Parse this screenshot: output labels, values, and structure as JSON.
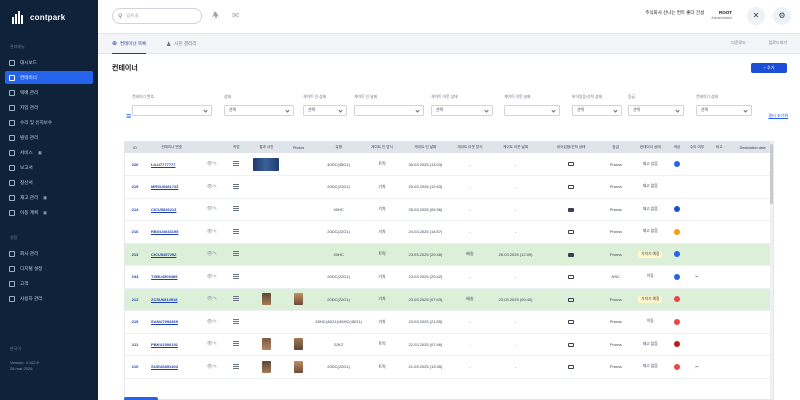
{
  "app": {
    "name": "contpark"
  },
  "sidebar": {
    "section_main": "관리메뉴",
    "items": [
      {
        "label": "대시보드",
        "icon": "dashboard-icon"
      },
      {
        "label": "컨테이너",
        "icon": "container-icon",
        "active": true
      },
      {
        "label": "택배 관리",
        "icon": "box-icon"
      },
      {
        "label": "지입 관리",
        "icon": "truck-icon"
      },
      {
        "label": "수리 및 유지보수",
        "icon": "wrench-icon"
      },
      {
        "label": "빌링 관리",
        "icon": "billing-icon"
      },
      {
        "label": "서비스",
        "icon": "service-icon",
        "badge": "8"
      },
      {
        "label": "보고서",
        "icon": "report-icon"
      },
      {
        "label": "정산서",
        "icon": "invoice-icon"
      },
      {
        "label": "재고 관리",
        "icon": "stock-icon",
        "badge": "8"
      },
      {
        "label": "이동 계획",
        "icon": "plan-icon",
        "badge": "6"
      }
    ],
    "section_settings": "설정",
    "settings_items": [
      {
        "label": "회사 관리",
        "icon": "company-icon"
      },
      {
        "label": "디지털 설정",
        "icon": "settings-icon"
      },
      {
        "label": "고객",
        "icon": "customer-icon"
      },
      {
        "label": "사용자 관리",
        "icon": "users-icon"
      }
    ],
    "language": "한국어",
    "version": "Version: 4.102.9",
    "date": "28 mar 2025"
  },
  "topbar": {
    "search_placeholder": "검색 중...",
    "user_line": "주식회사 신나는 컨트 좋다 건설",
    "user_name": "ROOT",
    "user_role": "Administrator"
  },
  "tabs": [
    {
      "label": "컨테이너 목록",
      "active": true
    },
    {
      "label": "사진 갤러리"
    }
  ],
  "tab_actions": [
    "다운로드",
    "업로드하기"
  ],
  "page": {
    "title": "컨테이너",
    "add_label": "+ 추가"
  },
  "filters": [
    {
      "label": "컨테이너 번호",
      "value": ""
    },
    {
      "label": "상태",
      "value": "선택"
    },
    {
      "label": "게이트 인 상태",
      "value": "선택"
    },
    {
      "label": "게이트 인 날짜",
      "value": ""
    },
    {
      "label": "게이트 아웃 상태",
      "value": "선택"
    },
    {
      "label": "게이트 아웃 날짜",
      "value": ""
    },
    {
      "label": "비어있음/선적 상태",
      "value": "선택"
    },
    {
      "label": "등급",
      "value": "선택"
    },
    {
      "label": "컨테이너 상태",
      "value": "선택"
    }
  ],
  "reset_label": "필터 초기화",
  "table": {
    "headers": [
      "ID",
      "컨테이너 번호",
      "",
      "작업",
      "결과 사진",
      "Photos",
      "유형",
      "게이트 인 방식",
      "게이트 인 날짜",
      "게이트 아웃 방식",
      "게이트 아웃 날짜",
      "비어있음/선적 상태",
      "등급",
      "컨테이너 상태",
      "색상",
      "수리 여부",
      "비고",
      "Destination date"
    ],
    "rows": [
      {
        "id": "220",
        "number": "LILU7777777",
        "photo": "wide",
        "type": "40DC(45G1)",
        "in_method": "트럭",
        "in_date": "30.03.2025 (13:03)",
        "out_method": "-",
        "out_date": "-",
        "device": "empty",
        "grade": "Proma",
        "status": "재고 있음",
        "color": "#2563eb",
        "repair": "",
        "hl": false
      },
      {
        "id": "219",
        "number": "MRSU5481743",
        "photo": "",
        "type": "20DC(22G1)",
        "in_method": "기차",
        "in_date": "25.03.2025 (12:53)",
        "out_method": "-",
        "out_date": "-",
        "device": "empty",
        "grade": "Proma",
        "status": "재고 없음",
        "color": "",
        "repair": "",
        "hl": false
      },
      {
        "id": "214",
        "number": "CICU5836213",
        "photo": "",
        "type": "40HC",
        "in_method": "기차",
        "in_date": "25.03.2025 (09:36)",
        "out_method": "-",
        "out_date": "-",
        "device": "filled",
        "grade": "Proma",
        "status": "재고 없음",
        "color": "#1d4ed8",
        "repair": "",
        "hl": false
      },
      {
        "id": "216",
        "number": "RBGU4043195",
        "photo": "",
        "type": "20DC(22G1)",
        "in_method": "기차",
        "in_date": "24.03.2025 (14:57)",
        "out_method": "-",
        "out_date": "-",
        "device": "empty",
        "grade": "Proma",
        "status": "재고 없음",
        "color": "#f59e0b",
        "repair": "",
        "hl": false
      },
      {
        "id": "213",
        "number": "CICU5457292",
        "photo": "",
        "type": "40HC",
        "in_method": "트럭",
        "in_date": "23.03.2025 (20:46)",
        "out_method": "배송",
        "out_date": "26.03.2025 (12:09)",
        "device": "filled",
        "grade": "Proma",
        "status": "가져가 예정",
        "color": "#2563eb",
        "repair": "",
        "hl": true
      },
      {
        "id": "193",
        "number": "TXBU4509489",
        "photo": "",
        "type": "20DC(22G1)",
        "in_method": "기차",
        "in_date": "23.03.2025 (20:42)",
        "out_method": "-",
        "out_date": "-",
        "device": "empty",
        "grade": "NSC",
        "status": "이동",
        "color": "#2563eb",
        "repair": "✂",
        "hl": false
      },
      {
        "id": "212",
        "number": "ZCSU6814518",
        "photo": "pair",
        "type": "20DC(22G1)",
        "in_method": "기차",
        "in_date": "23.03.2025 (07:43)",
        "out_method": "배송",
        "out_date": "23.03.2025 (09:40)",
        "device": "empty",
        "grade": "Proma",
        "status": "가져가 예정",
        "color": "#ef4444",
        "repair": "",
        "hl": true
      },
      {
        "id": "215",
        "number": "SANU7994369",
        "photo": "",
        "type": "45HC(45G1)/45HC(45G1)",
        "in_method": "기차",
        "in_date": "23.03.2025 (21:55)",
        "out_method": "-",
        "out_date": "-",
        "device": "empty",
        "grade": "Proma",
        "status": "이동",
        "color": "#ef4444",
        "repair": "",
        "hl": false
      },
      {
        "id": "211",
        "number": "PBKU1000191",
        "photo": "pair",
        "type": "22K2",
        "in_method": "트럭",
        "in_date": "22.03.2025 (07:46)",
        "out_method": "-",
        "out_date": "-",
        "device": "empty",
        "grade": "Proma",
        "status": "재고 없음",
        "color": "#b91c1c",
        "repair": "",
        "hl": false
      },
      {
        "id": "210",
        "number": "SUDU6851403",
        "photo": "pair",
        "type": "20DC(22G1)",
        "in_method": "트럭",
        "in_date": "21.03.2025 (13:35)",
        "out_method": "-",
        "out_date": "-",
        "device": "empty",
        "grade": "Proma",
        "status": "재고 없음",
        "color": "#ef4444",
        "repair": "✂",
        "hl": false
      }
    ]
  }
}
